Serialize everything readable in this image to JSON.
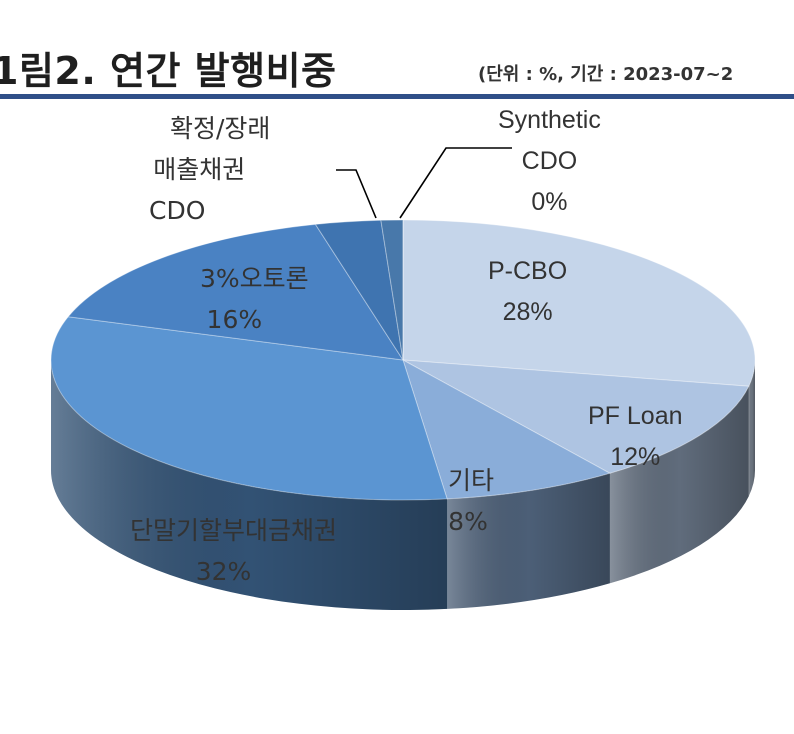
{
  "header": {
    "title": "1림2. 연간 발행비중",
    "unit_note": "(단위 : %, 기간 : 2023-07~2"
  },
  "chart_data": {
    "type": "pie",
    "title": "1림2. 연간 발행비중",
    "categories": [
      "P-CBO",
      "PF Loan",
      "기타",
      "단말기할부대금채권",
      "오토론",
      "매출채권 CDO",
      "확정/장래",
      "Synthetic CDO"
    ],
    "values": [
      28,
      12,
      8,
      32,
      16,
      3,
      1,
      0
    ],
    "slices": [
      {
        "name": "P-CBO",
        "value": 28,
        "display": "28%",
        "color": "#c5d5ea"
      },
      {
        "name": "PF Loan",
        "value": 12,
        "display": "12%",
        "color": "#aec4e2"
      },
      {
        "name": "기타",
        "value": 8,
        "display": "8%",
        "color": "#8aadd9"
      },
      {
        "name": "단말기할부대금채권",
        "value": 32,
        "display": "32%",
        "color": "#5b95d2"
      },
      {
        "name": "오토론",
        "value": 16,
        "display": "16%",
        "color": "#4a82c3"
      },
      {
        "name": "매출채권 CDO",
        "value": 3,
        "display": "3%",
        "color": "#3f74b0"
      },
      {
        "name": "확정/장래",
        "value": 1,
        "display": "",
        "color": "#4878aa"
      },
      {
        "name": "Synthetic CDO",
        "value": 0,
        "display": "0%",
        "color": "#4a74a2"
      }
    ],
    "label_texts": {
      "synthetic": [
        "Synthetic",
        "CDO",
        "0%"
      ],
      "maechul_cdo": [
        "확정/장래",
        "매출채권",
        "CDO"
      ],
      "autoloan": [
        "3%오토론",
        "16%"
      ],
      "pcbo": [
        "P-CBO",
        "28%"
      ],
      "pfloan": [
        "PF Loan",
        "12%"
      ],
      "gita": [
        "기타",
        "8%"
      ],
      "danmalgi": [
        "단말기할부대금채권",
        "32%"
      ]
    }
  }
}
